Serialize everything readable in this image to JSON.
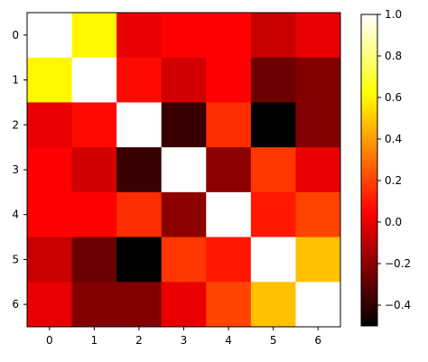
{
  "chart_data": {
    "type": "heatmap",
    "title": "",
    "xlabel": "",
    "ylabel": "",
    "x_ticks": [
      "0",
      "1",
      "2",
      "3",
      "4",
      "5",
      "6"
    ],
    "y_ticks": [
      "0",
      "1",
      "2",
      "3",
      "4",
      "5",
      "6"
    ],
    "colormap": "hot",
    "vmin": -0.5,
    "vmax": 1.0,
    "values": [
      [
        1.0,
        0.6,
        0.0,
        0.05,
        0.05,
        -0.07,
        0.0
      ],
      [
        0.6,
        1.0,
        0.07,
        -0.05,
        0.05,
        -0.27,
        -0.22
      ],
      [
        0.0,
        0.07,
        1.0,
        -0.38,
        0.15,
        -0.5,
        -0.22
      ],
      [
        0.05,
        -0.05,
        -0.38,
        1.0,
        -0.2,
        0.17,
        0.0
      ],
      [
        0.05,
        0.05,
        0.15,
        -0.2,
        1.0,
        0.1,
        0.2
      ],
      [
        -0.07,
        -0.27,
        -0.5,
        0.17,
        0.1,
        1.0,
        0.48
      ],
      [
        0.0,
        -0.22,
        -0.22,
        0.0,
        0.2,
        0.48,
        1.0
      ]
    ],
    "colorbar": {
      "ticks": [
        "1.0",
        "0.8",
        "0.6",
        "0.4",
        "0.2",
        "0.0",
        "−0.2",
        "−0.4"
      ],
      "tick_values": [
        1.0,
        0.8,
        0.6,
        0.4,
        0.2,
        0.0,
        -0.2,
        -0.4
      ]
    }
  }
}
